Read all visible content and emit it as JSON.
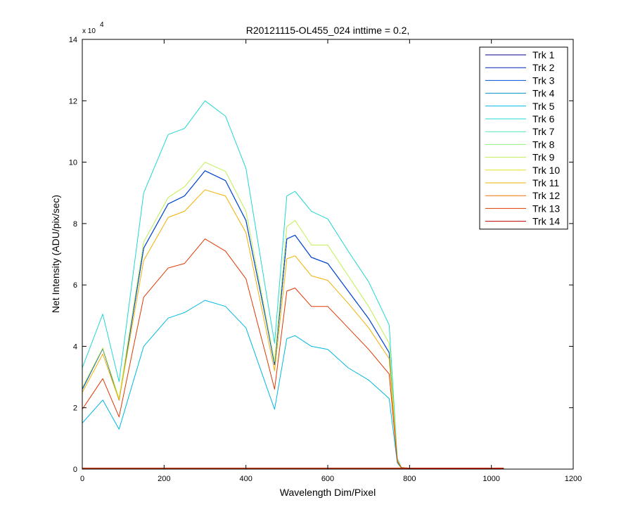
{
  "chart_data": {
    "type": "line",
    "title": "R20121115-OL455_024 inttime = 0.2,",
    "xlabel": "Wavelength Dim/Pixel",
    "ylabel": "Net Intensity (ADU/pix/sec)",
    "y_multiplier_label": "x 10",
    "y_multiplier_exponent": "4",
    "xlim": [
      0,
      1200
    ],
    "ylim": [
      0,
      14
    ],
    "x_ticks": [
      "0",
      "200",
      "400",
      "600",
      "800",
      "1000",
      "1200"
    ],
    "y_ticks": [
      "0",
      "2",
      "4",
      "6",
      "8",
      "10",
      "12",
      "14"
    ],
    "grid": false,
    "legend_position": "top-right",
    "series": [
      {
        "name": "Trk 1",
        "color": "#00008f",
        "x": [
          0,
          50,
          90,
          150,
          210,
          250,
          300,
          350,
          400,
          450,
          470,
          500,
          520,
          560,
          600,
          650,
          700,
          750,
          770,
          780,
          800,
          1030
        ],
        "y": [
          2.6,
          3.93,
          2.25,
          7.2,
          8.64,
          8.9,
          9.72,
          9.4,
          8.1,
          4.8,
          3.4,
          7.5,
          7.62,
          6.9,
          6.7,
          5.8,
          4.9,
          3.8,
          0.3,
          0.05,
          0.03,
          0.03
        ]
      },
      {
        "name": "Trk 2",
        "color": "#0020c0",
        "x": [
          0,
          50,
          90,
          150,
          210,
          250,
          300,
          350,
          400,
          450,
          470,
          500,
          520,
          560,
          600,
          650,
          700,
          750,
          770,
          780,
          800,
          1030
        ],
        "y": [
          2.6,
          3.93,
          2.25,
          7.2,
          8.64,
          8.9,
          9.72,
          9.4,
          8.1,
          4.8,
          3.4,
          7.5,
          7.62,
          6.9,
          6.7,
          5.8,
          4.9,
          3.8,
          0.3,
          0.05,
          0.03,
          0.03
        ]
      },
      {
        "name": "Trk 3",
        "color": "#0050d8",
        "x": [
          0,
          50,
          90,
          150,
          210,
          250,
          300,
          350,
          400,
          450,
          470,
          500,
          520,
          560,
          600,
          650,
          700,
          750,
          770,
          780,
          800,
          1030
        ],
        "y": [
          2.6,
          3.93,
          2.25,
          7.2,
          8.64,
          8.9,
          9.72,
          9.4,
          8.1,
          4.8,
          3.4,
          7.5,
          7.62,
          6.9,
          6.7,
          5.8,
          4.9,
          3.8,
          0.3,
          0.05,
          0.03,
          0.03
        ]
      },
      {
        "name": "Trk 4",
        "color": "#0090c0",
        "x": [
          0,
          50,
          90,
          150,
          210,
          250,
          300,
          350,
          400,
          450,
          470,
          500,
          520,
          560,
          600,
          650,
          700,
          750,
          770,
          780,
          800,
          1030
        ],
        "y": [
          0.03,
          0.03,
          0.03,
          0.03,
          0.03,
          0.03,
          0.03,
          0.03,
          0.03,
          0.03,
          0.03,
          0.03,
          0.03,
          0.03,
          0.03,
          0.03,
          0.03,
          0.03,
          0.03,
          0.03,
          0.03,
          0.03
        ]
      },
      {
        "name": "Trk 5",
        "color": "#00b8e0",
        "x": [
          0,
          50,
          90,
          150,
          210,
          250,
          300,
          350,
          400,
          450,
          470,
          500,
          520,
          560,
          600,
          650,
          700,
          750,
          770,
          780,
          800,
          1030
        ],
        "y": [
          1.5,
          2.25,
          1.3,
          4.0,
          4.92,
          5.1,
          5.5,
          5.3,
          4.6,
          2.7,
          1.95,
          4.25,
          4.35,
          4.0,
          3.9,
          3.3,
          2.9,
          2.3,
          0.2,
          0.04,
          0.02,
          0.02
        ]
      },
      {
        "name": "Trk 6",
        "color": "#20d8d0",
        "x": [
          0,
          50,
          90,
          150,
          210,
          250,
          300,
          350,
          400,
          450,
          470,
          500,
          520,
          560,
          600,
          650,
          700,
          750,
          770,
          780,
          800,
          1030
        ],
        "y": [
          3.3,
          5.05,
          2.85,
          9.0,
          10.9,
          11.1,
          12.0,
          11.5,
          9.8,
          5.7,
          4.1,
          8.9,
          9.05,
          8.4,
          8.15,
          7.1,
          6.1,
          4.7,
          0.35,
          0.06,
          0.03,
          0.03
        ]
      },
      {
        "name": "Trk 7",
        "color": "#50e8c0",
        "x": [
          0,
          50,
          90,
          150,
          210,
          250,
          300,
          350,
          400,
          450,
          470,
          500,
          520,
          560,
          600,
          650,
          700,
          750,
          770,
          780,
          800,
          1030
        ],
        "y": [
          0.03,
          0.03,
          0.03,
          0.03,
          0.03,
          0.03,
          0.03,
          0.03,
          0.03,
          0.03,
          0.03,
          0.03,
          0.03,
          0.03,
          0.03,
          0.03,
          0.03,
          0.03,
          0.03,
          0.03,
          0.03,
          0.03
        ]
      },
      {
        "name": "Trk 8",
        "color": "#90f080",
        "x": [
          0,
          50,
          90,
          150,
          210,
          250,
          300,
          350,
          400,
          450,
          470,
          500,
          520,
          560,
          600,
          650,
          700,
          750,
          770,
          780,
          800,
          1030
        ],
        "y": [
          0.03,
          0.03,
          0.03,
          0.03,
          0.03,
          0.03,
          0.03,
          0.03,
          0.03,
          0.03,
          0.03,
          0.03,
          0.03,
          0.03,
          0.03,
          0.03,
          0.03,
          0.03,
          0.03,
          0.03,
          0.03,
          0.03
        ]
      },
      {
        "name": "Trk 9",
        "color": "#c0f050",
        "x": [
          0,
          50,
          90,
          150,
          210,
          250,
          300,
          350,
          400,
          450,
          470,
          500,
          520,
          560,
          600,
          650,
          700,
          750,
          770,
          780,
          800,
          1030
        ],
        "y": [
          2.65,
          3.95,
          2.3,
          7.4,
          8.85,
          9.2,
          10.0,
          9.7,
          8.4,
          4.9,
          3.5,
          7.9,
          8.1,
          7.3,
          7.3,
          6.3,
          5.3,
          4.1,
          0.3,
          0.05,
          0.03,
          0.03
        ]
      },
      {
        "name": "Trk 10",
        "color": "#e8e020",
        "x": [
          0,
          50,
          90,
          150,
          210,
          250,
          300,
          350,
          400,
          450,
          470,
          500,
          520,
          560,
          600,
          650,
          700,
          750,
          770,
          780,
          800,
          1030
        ],
        "y": [
          0.03,
          0.03,
          0.03,
          0.03,
          0.03,
          0.03,
          0.03,
          0.03,
          0.03,
          0.03,
          0.03,
          0.03,
          0.03,
          0.03,
          0.03,
          0.03,
          0.03,
          0.03,
          0.03,
          0.03,
          0.03,
          0.03
        ]
      },
      {
        "name": "Trk 11",
        "color": "#f0b000",
        "x": [
          0,
          50,
          90,
          150,
          210,
          250,
          300,
          350,
          400,
          450,
          470,
          500,
          520,
          560,
          600,
          650,
          700,
          750,
          770,
          780,
          800,
          1030
        ],
        "y": [
          2.5,
          3.75,
          2.25,
          6.8,
          8.2,
          8.4,
          9.1,
          8.9,
          7.7,
          4.5,
          3.2,
          6.85,
          6.95,
          6.3,
          6.15,
          5.4,
          4.6,
          3.6,
          0.28,
          0.05,
          0.03,
          0.03
        ]
      },
      {
        "name": "Trk 12",
        "color": "#f07000",
        "x": [
          0,
          50,
          90,
          150,
          210,
          250,
          300,
          350,
          400,
          450,
          470,
          500,
          520,
          560,
          600,
          650,
          700,
          750,
          770,
          780,
          800,
          1030
        ],
        "y": [
          0.03,
          0.03,
          0.03,
          0.03,
          0.03,
          0.03,
          0.03,
          0.03,
          0.03,
          0.03,
          0.03,
          0.03,
          0.03,
          0.03,
          0.03,
          0.03,
          0.03,
          0.03,
          0.03,
          0.03,
          0.03,
          0.03
        ]
      },
      {
        "name": "Trk 13",
        "color": "#e03800",
        "x": [
          0,
          50,
          90,
          150,
          210,
          250,
          300,
          350,
          400,
          450,
          470,
          500,
          520,
          560,
          600,
          650,
          700,
          750,
          770,
          780,
          800,
          1030
        ],
        "y": [
          1.95,
          2.95,
          1.7,
          5.6,
          6.55,
          6.7,
          7.5,
          7.1,
          6.2,
          3.65,
          2.6,
          5.8,
          5.9,
          5.3,
          5.3,
          4.6,
          3.9,
          3.1,
          0.25,
          0.04,
          0.02,
          0.02
        ]
      },
      {
        "name": "Trk 14",
        "color": "#c00000",
        "x": [
          0,
          50,
          90,
          150,
          210,
          250,
          300,
          350,
          400,
          450,
          470,
          500,
          520,
          560,
          600,
          650,
          700,
          750,
          770,
          780,
          800,
          1030
        ],
        "y": [
          0.03,
          0.03,
          0.03,
          0.03,
          0.03,
          0.03,
          0.03,
          0.03,
          0.03,
          0.03,
          0.03,
          0.03,
          0.03,
          0.03,
          0.03,
          0.03,
          0.03,
          0.03,
          0.03,
          0.03,
          0.03,
          0.03
        ]
      }
    ]
  }
}
